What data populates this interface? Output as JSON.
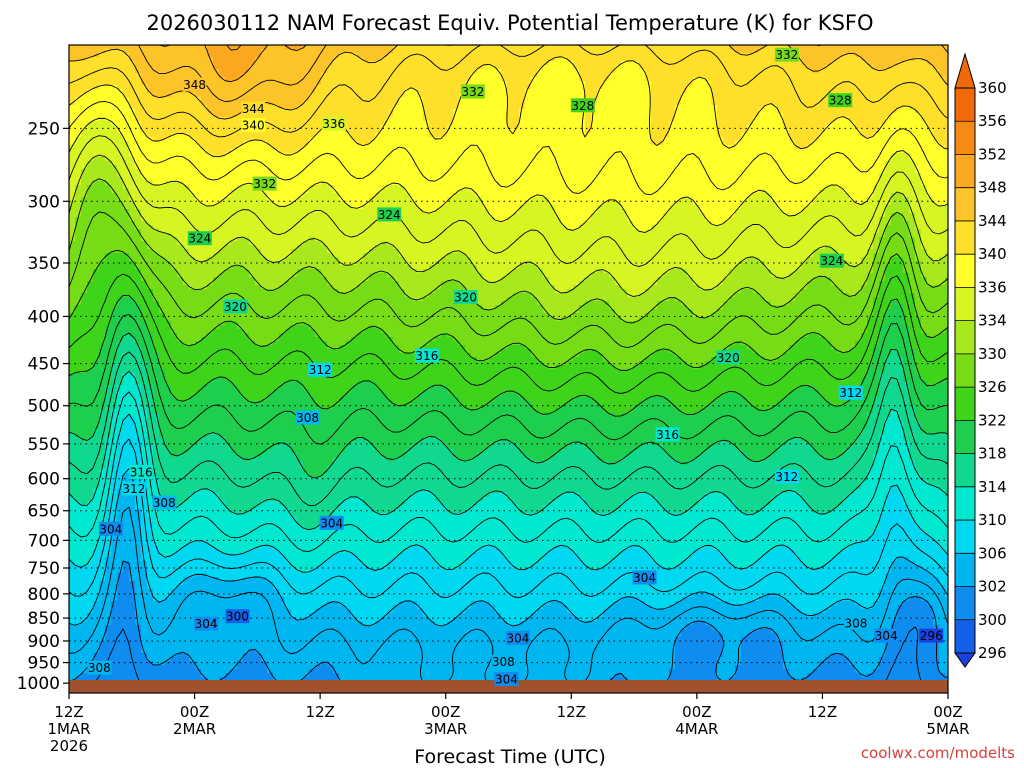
{
  "chart_data": {
    "type": "heatmap",
    "title": "2026030112 NAM Forecast Equiv. Potential Temperature (K) for KSFO",
    "xlabel": "Forecast Time (UTC)",
    "ylabel": "",
    "credit": "coolwx.com/modelts",
    "x_ticks": [
      {
        "hours": 0,
        "lines": [
          "12Z",
          "1MAR",
          "2026"
        ]
      },
      {
        "hours": 12,
        "lines": [
          "00Z",
          "2MAR"
        ]
      },
      {
        "hours": 24,
        "lines": [
          "12Z"
        ]
      },
      {
        "hours": 36,
        "lines": [
          "00Z",
          "3MAR"
        ]
      },
      {
        "hours": 48,
        "lines": [
          "12Z"
        ]
      },
      {
        "hours": 60,
        "lines": [
          "00Z",
          "4MAR"
        ]
      },
      {
        "hours": 72,
        "lines": [
          "12Z"
        ]
      },
      {
        "hours": 84,
        "lines": [
          "00Z",
          "5MAR"
        ]
      }
    ],
    "x_range_hours": [
      0,
      84
    ],
    "y_axis": {
      "units": "hPa",
      "inverted": true,
      "scale": "log",
      "range": [
        200,
        1028
      ],
      "ticks": [
        250,
        300,
        350,
        400,
        450,
        500,
        550,
        600,
        650,
        700,
        750,
        800,
        850,
        900,
        950,
        1000
      ]
    },
    "grid": "dotted-horizontal",
    "colorbar": {
      "ticks": [
        360,
        356,
        352,
        348,
        344,
        340,
        336,
        334,
        330,
        326,
        322,
        318,
        314,
        310,
        306,
        302,
        300,
        296
      ],
      "colors": [
        "#f06a0a",
        "#f58a14",
        "#fba820",
        "#fcc428",
        "#fee02a",
        "#ffff2a",
        "#d6f522",
        "#a8e81c",
        "#76dc16",
        "#3ed41a",
        "#1ecf4e",
        "#10d98f",
        "#00e8cf",
        "#00d8f2",
        "#00b6f0",
        "#0f8cf0",
        "#1560e8",
        "#1a40e0"
      ],
      "extend": "both"
    },
    "surface_color": "#a0522d",
    "contour_labels": [
      {
        "value": 348,
        "t": 12.0,
        "p": 224
      },
      {
        "value": 344,
        "t": 17.6,
        "p": 238
      },
      {
        "value": 340,
        "t": 17.6,
        "p": 248
      },
      {
        "value": 336,
        "t": 25.3,
        "p": 247
      },
      {
        "value": 332,
        "t": 18.7,
        "p": 287
      },
      {
        "value": 332,
        "t": 38.6,
        "p": 228
      },
      {
        "value": 332,
        "t": 68.6,
        "p": 208
      },
      {
        "value": 328,
        "t": 49.1,
        "p": 236
      },
      {
        "value": 328,
        "t": 73.7,
        "p": 233
      },
      {
        "value": 324,
        "t": 12.5,
        "p": 329
      },
      {
        "value": 324,
        "t": 30.6,
        "p": 310
      },
      {
        "value": 324,
        "t": 72.9,
        "p": 348
      },
      {
        "value": 320,
        "t": 15.9,
        "p": 390
      },
      {
        "value": 320,
        "t": 37.9,
        "p": 381
      },
      {
        "value": 320,
        "t": 63.0,
        "p": 443
      },
      {
        "value": 316,
        "t": 34.2,
        "p": 441
      },
      {
        "value": 316,
        "t": 57.2,
        "p": 537
      },
      {
        "value": 316,
        "t": 6.9,
        "p": 590
      },
      {
        "value": 312,
        "t": 24.0,
        "p": 457
      },
      {
        "value": 312,
        "t": 6.2,
        "p": 615
      },
      {
        "value": 312,
        "t": 68.6,
        "p": 597
      },
      {
        "value": 312,
        "t": 74.7,
        "p": 484
      },
      {
        "value": 308,
        "t": 22.8,
        "p": 515
      },
      {
        "value": 308,
        "t": 9.1,
        "p": 637
      },
      {
        "value": 308,
        "t": 75.2,
        "p": 860
      },
      {
        "value": 308,
        "t": 41.5,
        "p": 948
      },
      {
        "value": 308,
        "t": 2.9,
        "p": 962
      },
      {
        "value": 304,
        "t": 4.0,
        "p": 680
      },
      {
        "value": 304,
        "t": 25.1,
        "p": 670
      },
      {
        "value": 304,
        "t": 55.0,
        "p": 768
      },
      {
        "value": 304,
        "t": 42.9,
        "p": 893
      },
      {
        "value": 304,
        "t": 13.1,
        "p": 862
      },
      {
        "value": 304,
        "t": 41.8,
        "p": 990
      },
      {
        "value": 304,
        "t": 78.1,
        "p": 888
      },
      {
        "value": 300,
        "t": 16.1,
        "p": 846
      },
      {
        "value": 296,
        "t": 82.4,
        "p": 888
      }
    ]
  }
}
